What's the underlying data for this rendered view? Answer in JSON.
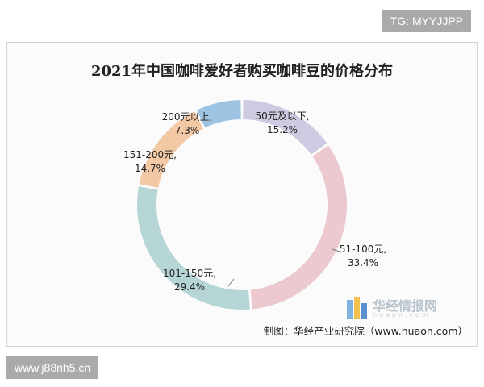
{
  "watermarks": {
    "top": "TG: MYYJJPP",
    "bottom": "www.j88nh5.cn"
  },
  "logo": {
    "text": "华经情报网",
    "subtext": "huaon.com"
  },
  "source": "制图：华经产业研究院（www.huaon.com）",
  "colors": {
    "frame_border": "#d3d3d3",
    "leader_line": "#7a7a7a"
  },
  "chart_data": {
    "type": "pie",
    "variant": "donut",
    "title": "2021年中国咖啡爱好者购买咖啡豆的价格分布",
    "unit": "%",
    "slices": [
      {
        "name": "50元及以下",
        "value": 15.2,
        "label_line1": "50元及以下,",
        "label_line2": "15.2%",
        "color": "#cdcbe1"
      },
      {
        "name": "51-100元",
        "value": 33.4,
        "label_line1": "51-100元,",
        "label_line2": "33.4%",
        "color": "#ebc9ce"
      },
      {
        "name": "101-150元",
        "value": 29.4,
        "label_line1": "101-150元,",
        "label_line2": "29.4%",
        "color": "#b5d6d5"
      },
      {
        "name": "151-200元",
        "value": 14.7,
        "label_line1": "151-200元,",
        "label_line2": "14.7%",
        "color": "#f3c8a5"
      },
      {
        "name": "200元以上",
        "value": 7.3,
        "label_line1": "200元以上,",
        "label_line2": "7.3%",
        "color": "#9dc3e3"
      }
    ]
  }
}
